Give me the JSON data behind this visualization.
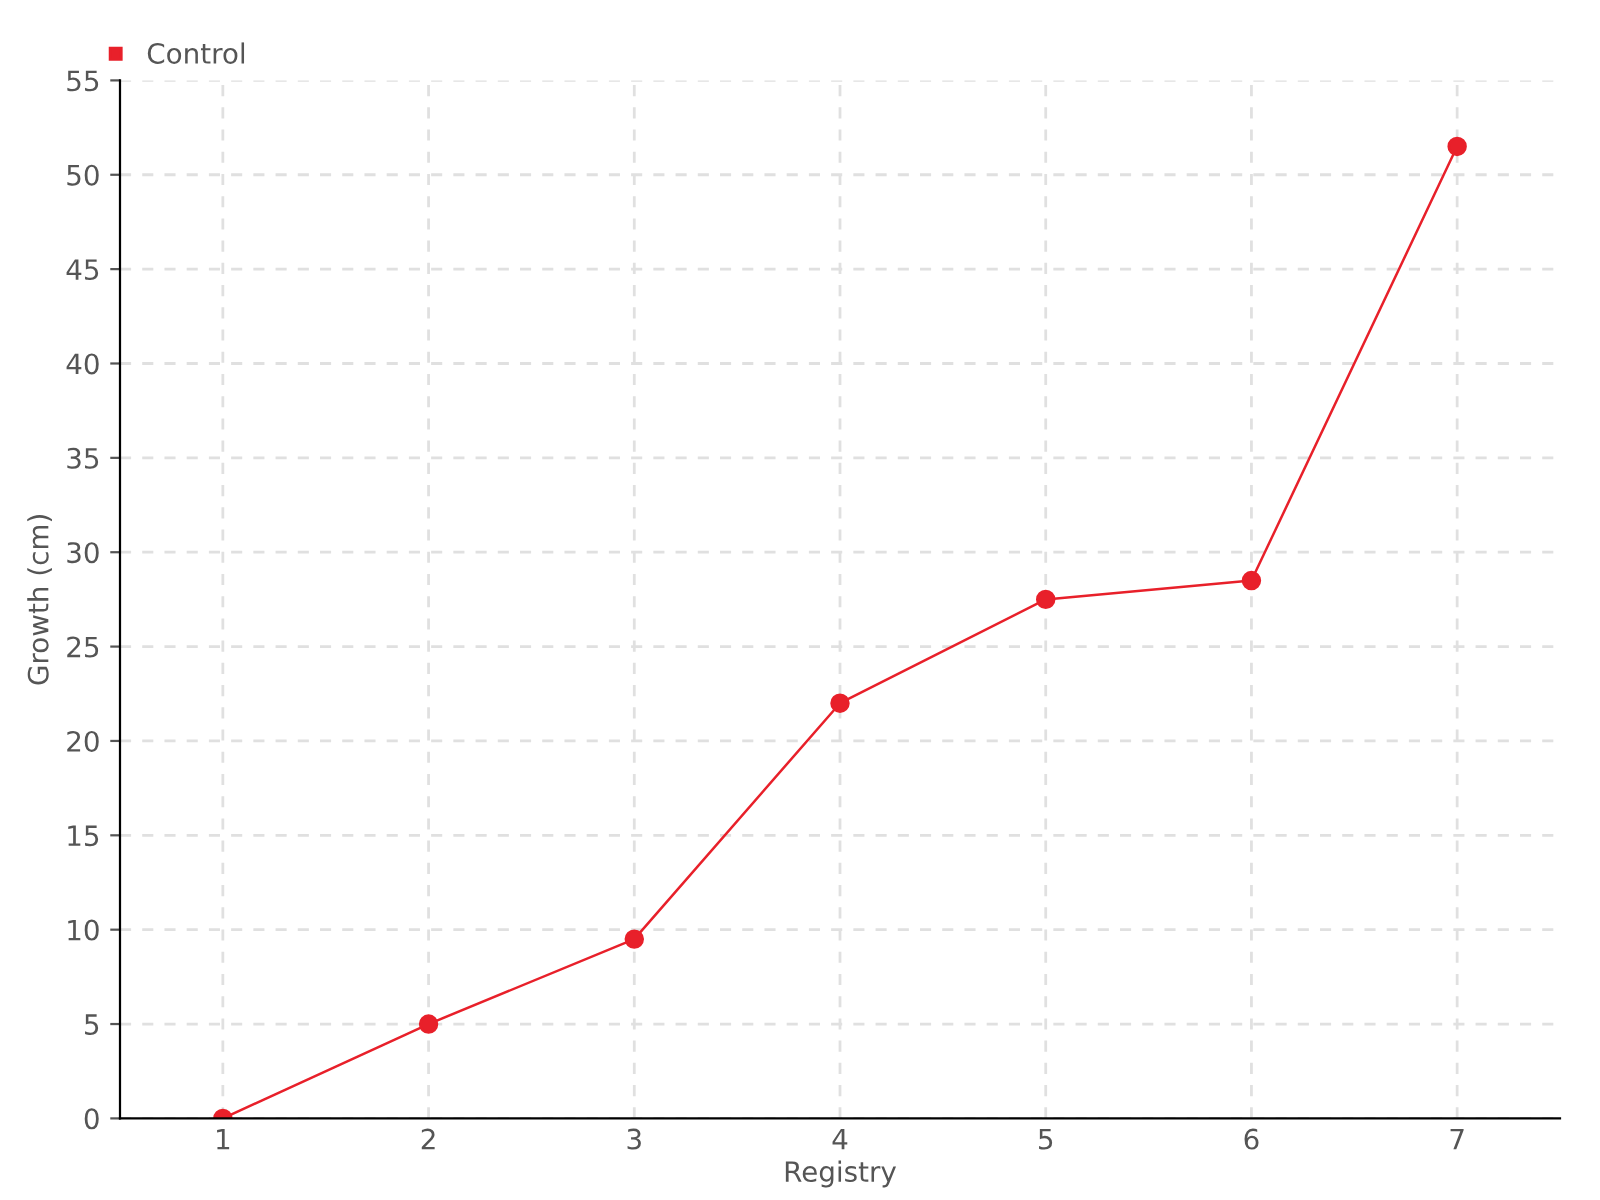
{
  "chart_data": {
    "type": "line",
    "xlabel": "Registry",
    "ylabel": "Growth (cm)",
    "categories": [
      "1",
      "2",
      "3",
      "4",
      "5",
      "6",
      "7"
    ],
    "series": [
      {
        "name": "Control",
        "color": "#e8202a",
        "values": [
          0,
          5,
          9.5,
          22,
          27.5,
          28.5,
          51.5
        ]
      }
    ],
    "ylim": [
      0,
      55
    ],
    "yticks": [
      0,
      5,
      10,
      15,
      20,
      25,
      30,
      35,
      40,
      45,
      50,
      55
    ],
    "grid": true,
    "legend": "top left",
    "marker": "circle",
    "line_style": "solid"
  }
}
